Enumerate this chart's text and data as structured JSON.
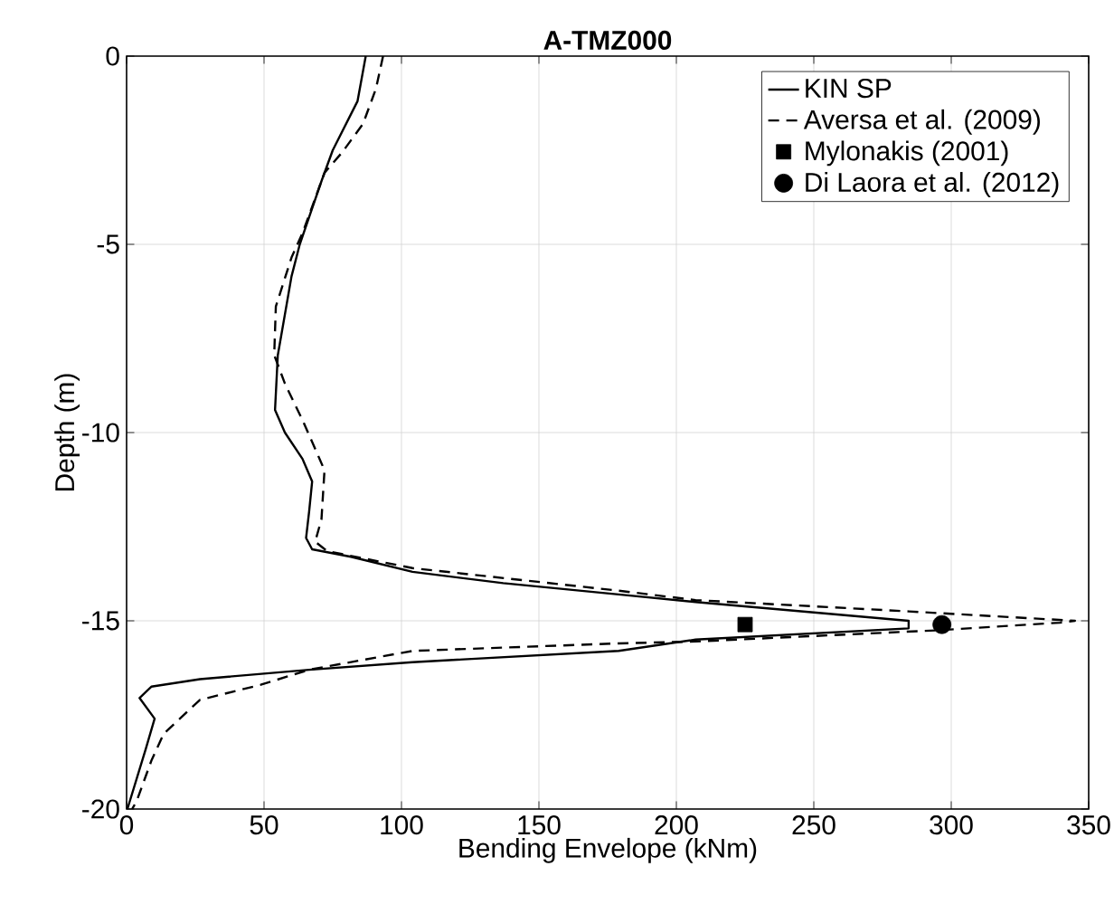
{
  "chart_data": {
    "type": "line",
    "title": "A-TMZ000",
    "xlabel": "Bending Envelope (kNm)",
    "ylabel": "Depth (m)",
    "xlim": [
      0,
      350
    ],
    "ylim": [
      -20,
      0
    ],
    "xticks": [
      0,
      50,
      100,
      150,
      200,
      250,
      300,
      350
    ],
    "yticks": [
      -20,
      -15,
      -10,
      -5,
      0
    ],
    "grid": true,
    "legend": "top right",
    "series": [
      {
        "name": "KIN SP",
        "line_style": "solid",
        "color": "#000000",
        "x": [
          87,
          84,
          75,
          71,
          63,
          60,
          55,
          54,
          57.6,
          64,
          67.5,
          66.4,
          65.3,
          67.5,
          81.6,
          104,
          137,
          179,
          207,
          284.5,
          284.5,
          207,
          179,
          104,
          66.4,
          26.7,
          9,
          4.7,
          10.2,
          7,
          0.3
        ],
        "values": [
          0,
          -1.2,
          -2.5,
          -3.3,
          -5,
          -5.85,
          -7.95,
          -9.4,
          -10,
          -10.7,
          -11.3,
          -12.1,
          -12.8,
          -13.1,
          -13.3,
          -13.7,
          -14.0,
          -14.3,
          -14.5,
          -15.0,
          -15.2,
          -15.5,
          -15.8,
          -16.1,
          -16.3,
          -16.55,
          -16.75,
          -17.05,
          -17.6,
          -18.4,
          -20
        ]
      },
      {
        "name": "Aversa et al. (2009)",
        "line_style": "dashed",
        "color": "#000000",
        "x": [
          93.3,
          90.7,
          86,
          78.5,
          72,
          64,
          60,
          54.3,
          53.7,
          57.6,
          64.2,
          72,
          70.9,
          68.6,
          73,
          104,
          179,
          207,
          284.5,
          345,
          339.5,
          295.6,
          207,
          179,
          104,
          66.4,
          48.8,
          26.7,
          13.5,
          9.1,
          3.6,
          2
        ],
        "values": [
          0,
          -0.87,
          -1.8,
          -2.55,
          -3.1,
          -4.7,
          -5.35,
          -6.65,
          -7.94,
          -8.7,
          -9.7,
          -11.0,
          -12.3,
          -12.9,
          -13.15,
          -13.6,
          -14.2,
          -14.45,
          -14.75,
          -15.0,
          -15.05,
          -15.25,
          -15.55,
          -15.6,
          -15.8,
          -16.3,
          -16.7,
          -17.1,
          -18.0,
          -18.7,
          -19.8,
          -20
        ]
      },
      {
        "name": "Mylonakis (2001)",
        "type": "scatter",
        "marker": "square",
        "color": "#000000",
        "x": [
          225
        ],
        "values": [
          -15.1
        ]
      },
      {
        "name": "Di Laora et al. (2012)",
        "type": "scatter",
        "marker": "circle",
        "color": "#000000",
        "x": [
          296.6
        ],
        "values": [
          -15.1
        ]
      }
    ]
  }
}
